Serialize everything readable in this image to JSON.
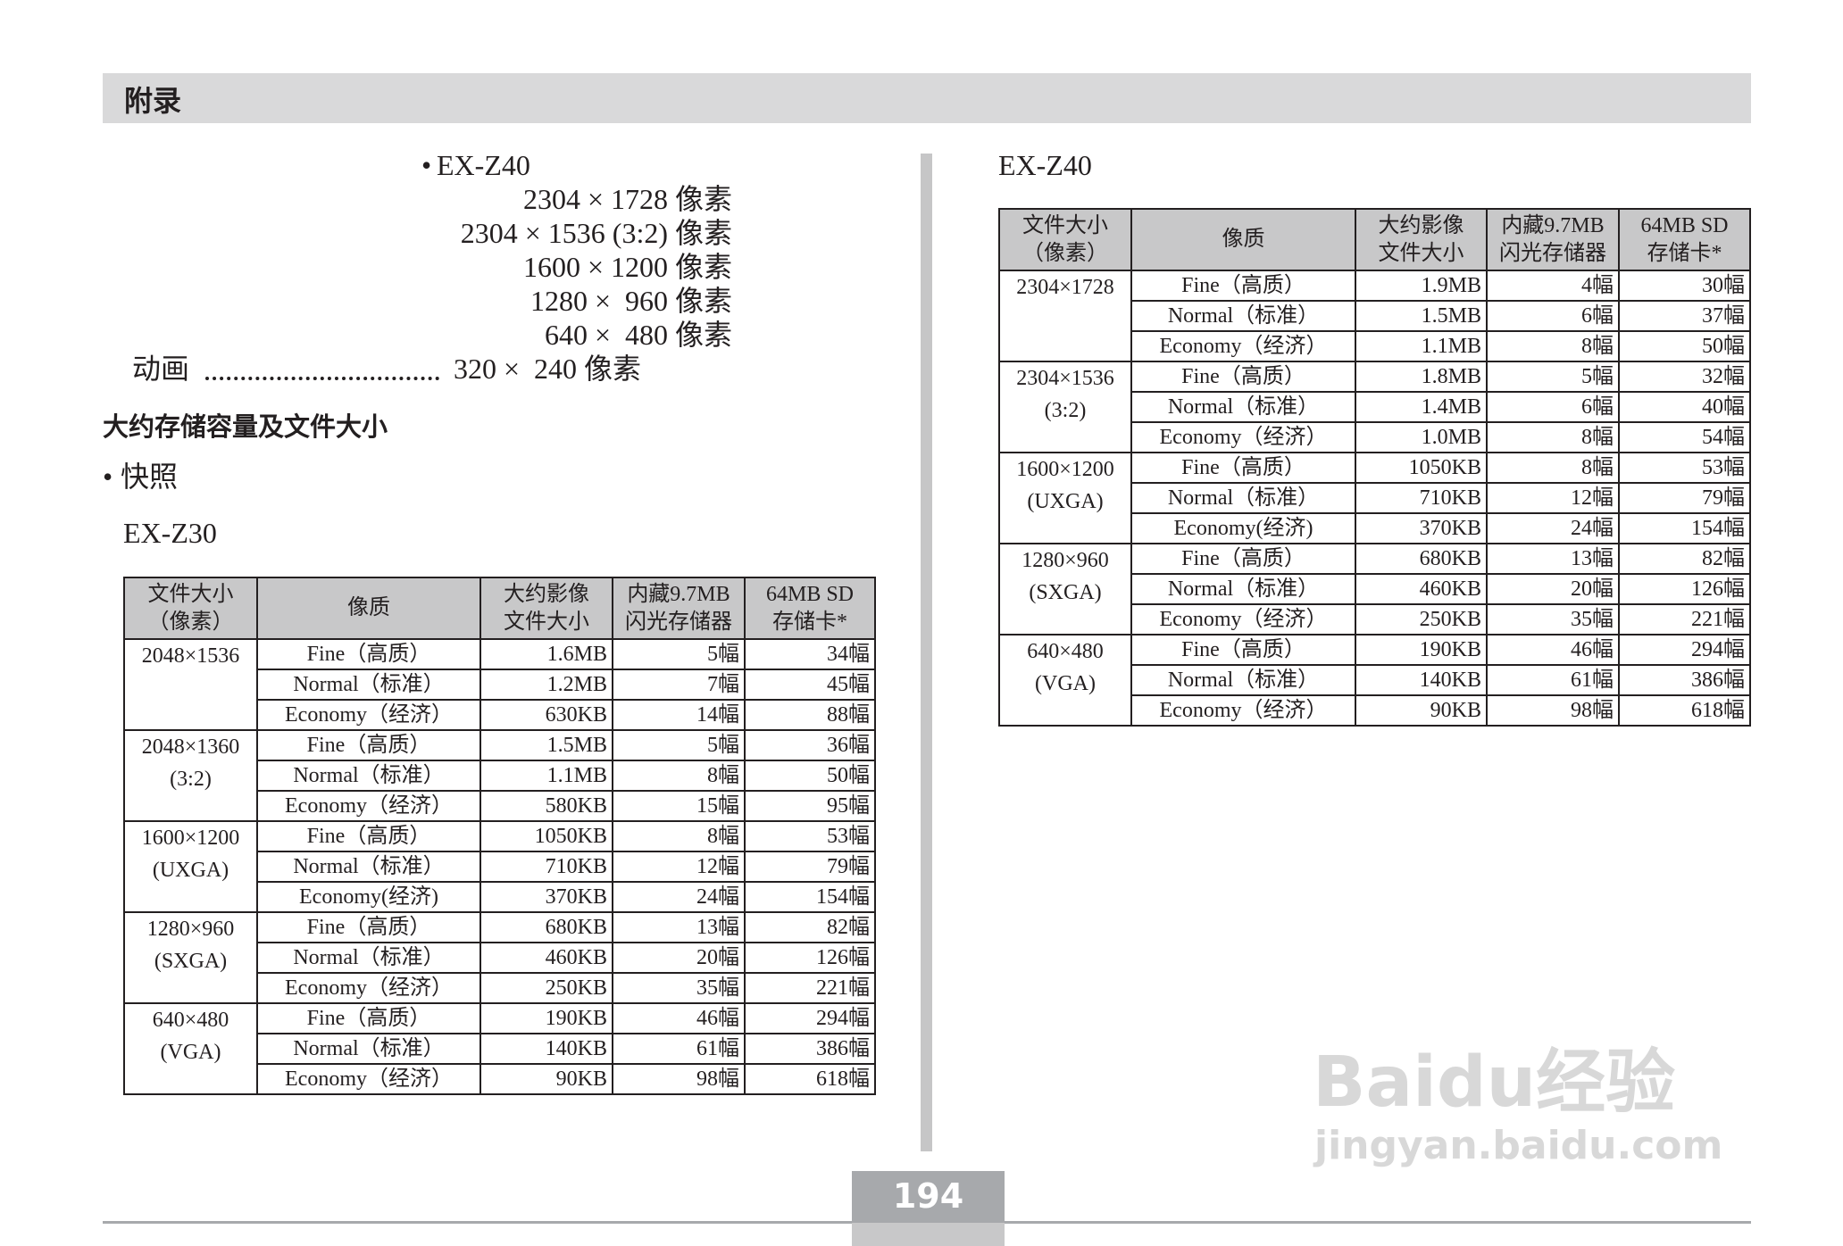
{
  "header": {
    "title": "附录"
  },
  "specs": {
    "bullet": "•",
    "model": "EX-Z40",
    "lines": [
      "2304 × 1728 像素",
      "2304 × 1536 (3:2) 像素",
      "1600 × 1200 像素",
      "1280 ×  960 像素",
      "640 ×  480 像素"
    ],
    "movie_label": "动画",
    "movie_value": "320 ×  240 像素"
  },
  "section": {
    "title": "大约存储容量及文件大小",
    "bullet": "•",
    "subtitle": "快照"
  },
  "tables": [
    {
      "model": "EX-Z30",
      "header": [
        [
          "文件大小",
          "（像素）"
        ],
        [
          "像质"
        ],
        [
          "大约影像",
          "文件大小"
        ],
        [
          "内藏9.7MB",
          "闪光存储器"
        ],
        [
          "64MB SD",
          "存储卡*"
        ]
      ],
      "groups": [
        {
          "size": [
            "2048×1536"
          ],
          "rows": [
            [
              "Fine（高质）",
              "1.6MB",
              "5幅",
              "34幅"
            ],
            [
              "Normal（标准）",
              "1.2MB",
              "7幅",
              "45幅"
            ],
            [
              "Economy（经济）",
              "630KB",
              "14幅",
              "88幅"
            ]
          ]
        },
        {
          "size": [
            "2048×1360",
            "(3:2)"
          ],
          "rows": [
            [
              "Fine（高质）",
              "1.5MB",
              "5幅",
              "36幅"
            ],
            [
              "Normal（标准）",
              "1.1MB",
              "8幅",
              "50幅"
            ],
            [
              "Economy（经济）",
              "580KB",
              "15幅",
              "95幅"
            ]
          ]
        },
        {
          "size": [
            "1600×1200",
            "(UXGA)"
          ],
          "rows": [
            [
              "Fine（高质）",
              "1050KB",
              "8幅",
              "53幅"
            ],
            [
              "Normal（标准）",
              "710KB",
              "12幅",
              "79幅"
            ],
            [
              "Economy(经济)",
              "370KB",
              "24幅",
              "154幅"
            ]
          ]
        },
        {
          "size": [
            "1280×960",
            "(SXGA)"
          ],
          "rows": [
            [
              "Fine（高质）",
              "680KB",
              "13幅",
              "82幅"
            ],
            [
              "Normal（标准）",
              "460KB",
              "20幅",
              "126幅"
            ],
            [
              "Economy（经济）",
              "250KB",
              "35幅",
              "221幅"
            ]
          ]
        },
        {
          "size": [
            "640×480",
            "(VGA)"
          ],
          "rows": [
            [
              "Fine（高质）",
              "190KB",
              "46幅",
              "294幅"
            ],
            [
              "Normal（标准）",
              "140KB",
              "61幅",
              "386幅"
            ],
            [
              "Economy（经济）",
              "90KB",
              "98幅",
              "618幅"
            ]
          ]
        }
      ]
    },
    {
      "model": "EX-Z40",
      "header": [
        [
          "文件大小",
          "（像素）"
        ],
        [
          "像质"
        ],
        [
          "大约影像",
          "文件大小"
        ],
        [
          "内藏9.7MB",
          "闪光存储器"
        ],
        [
          "64MB SD",
          "存储卡*"
        ]
      ],
      "groups": [
        {
          "size": [
            "2304×1728"
          ],
          "rows": [
            [
              "Fine（高质）",
              "1.9MB",
              "4幅",
              "30幅"
            ],
            [
              "Normal（标准）",
              "1.5MB",
              "6幅",
              "37幅"
            ],
            [
              "Economy（经济）",
              "1.1MB",
              "8幅",
              "50幅"
            ]
          ]
        },
        {
          "size": [
            "2304×1536",
            "(3:2)"
          ],
          "rows": [
            [
              "Fine（高质）",
              "1.8MB",
              "5幅",
              "32幅"
            ],
            [
              "Normal（标准）",
              "1.4MB",
              "6幅",
              "40幅"
            ],
            [
              "Economy（经济）",
              "1.0MB",
              "8幅",
              "54幅"
            ]
          ]
        },
        {
          "size": [
            "1600×1200",
            "(UXGA)"
          ],
          "rows": [
            [
              "Fine（高质）",
              "1050KB",
              "8幅",
              "53幅"
            ],
            [
              "Normal（标准）",
              "710KB",
              "12幅",
              "79幅"
            ],
            [
              "Economy(经济)",
              "370KB",
              "24幅",
              "154幅"
            ]
          ]
        },
        {
          "size": [
            "1280×960",
            "(SXGA)"
          ],
          "rows": [
            [
              "Fine（高质）",
              "680KB",
              "13幅",
              "82幅"
            ],
            [
              "Normal（标准）",
              "460KB",
              "20幅",
              "126幅"
            ],
            [
              "Economy（经济）",
              "250KB",
              "35幅",
              "221幅"
            ]
          ]
        },
        {
          "size": [
            "640×480",
            "(VGA)"
          ],
          "rows": [
            [
              "Fine（高质）",
              "190KB",
              "46幅",
              "294幅"
            ],
            [
              "Normal（标准）",
              "140KB",
              "61幅",
              "386幅"
            ],
            [
              "Economy（经济）",
              "90KB",
              "98幅",
              "618幅"
            ]
          ]
        }
      ]
    }
  ],
  "page_number": "194",
  "watermark": {
    "brand": "Baidu经验",
    "url": "jingyan.baidu.com"
  }
}
